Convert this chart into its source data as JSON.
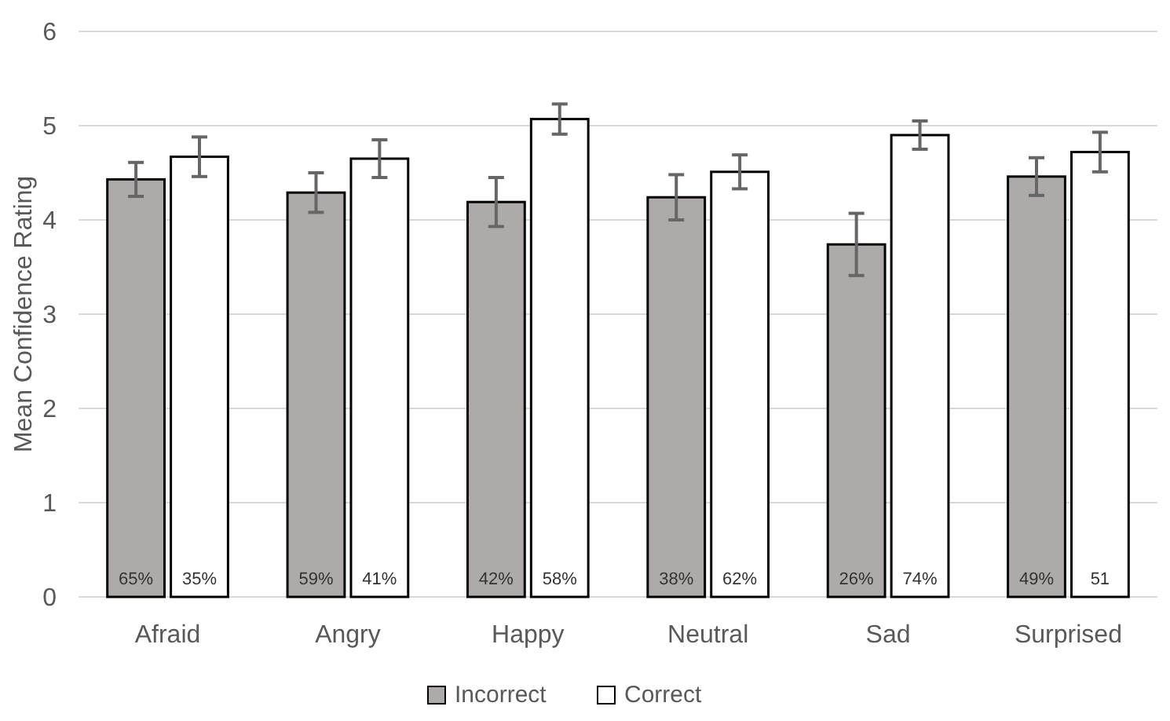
{
  "chart_data": {
    "type": "bar",
    "ylabel": "Mean Confidence Rating",
    "categories": [
      "Afraid",
      "Angry",
      "Happy",
      "Neutral",
      "Sad",
      "Surprised"
    ],
    "series": [
      {
        "name": "Incorrect",
        "color": "#aeaaaa",
        "values": [
          4.43,
          4.29,
          4.19,
          4.24,
          3.74,
          4.46
        ],
        "errors": [
          0.18,
          0.21,
          0.26,
          0.24,
          0.33,
          0.2
        ]
      },
      {
        "name": "Correct",
        "color": "#ffffff",
        "values": [
          4.67,
          4.65,
          5.07,
          4.51,
          4.9,
          4.72
        ],
        "errors": [
          0.21,
          0.2,
          0.16,
          0.18,
          0.15,
          0.21
        ]
      }
    ],
    "annotations": [
      {
        "text": "65%",
        "x": "Afraid",
        "y": 0
      },
      {
        "text": "35%",
        "x": "Afraid",
        "y": 0
      },
      {
        "text": "59%",
        "x": "Angry",
        "y": 0
      },
      {
        "text": "41%",
        "x": "Angry",
        "y": 0
      },
      {
        "text": "42%",
        "x": "Happy",
        "y": 0
      },
      {
        "text": "58%",
        "x": "Happy",
        "y": 0
      },
      {
        "text": "38%",
        "x": "Neutral",
        "y": 0
      },
      {
        "text": "62%",
        "x": "Neutral",
        "y": 0
      },
      {
        "text": "26%",
        "x": "Sad",
        "y": 0
      },
      {
        "text": "74%",
        "x": "Sad",
        "y": 0
      },
      {
        "text": "49%",
        "x": "Surprised",
        "y": 0
      },
      {
        "text": "51",
        "x": "Surprised",
        "y": 0
      }
    ],
    "ylim": [
      0,
      6
    ],
    "yticks": [
      0,
      1,
      2,
      3,
      4,
      5,
      6
    ],
    "grid": "y",
    "legend": "bottom"
  }
}
